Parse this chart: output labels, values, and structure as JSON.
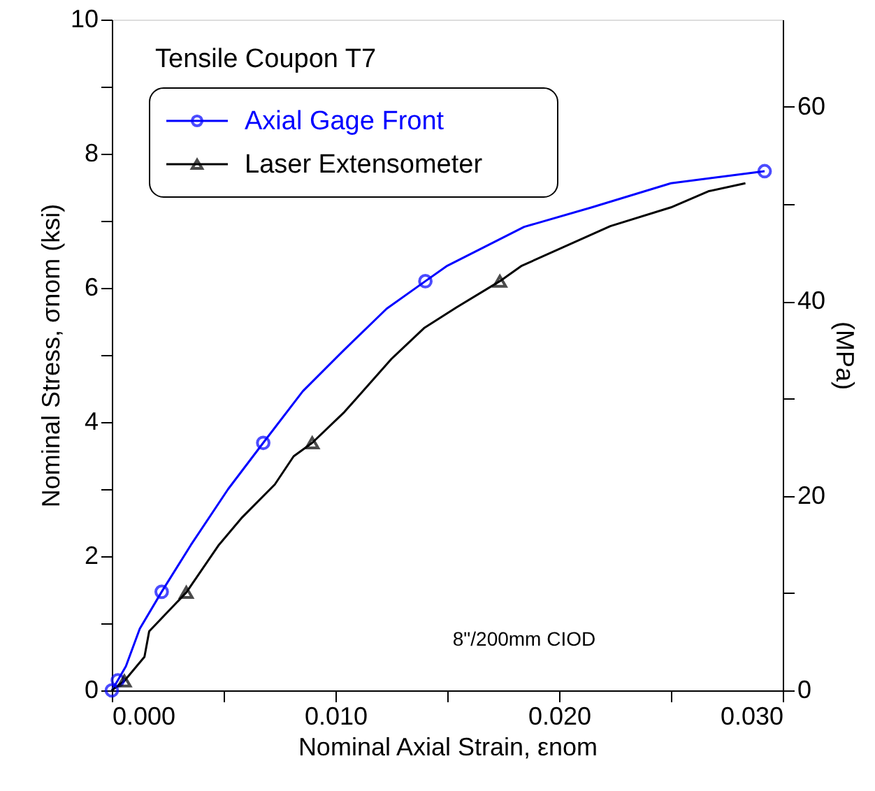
{
  "chart_data": {
    "type": "line",
    "title": "Tensile Coupon T7",
    "xlabel": "Nominal Axial Strain, εnom",
    "ylabel": "Nominal Stress, σnom (ksi)",
    "y2label": "(MPa)",
    "annotations": [
      "8\"/200mm CIOD"
    ],
    "xlim": [
      0,
      0.03
    ],
    "xticks": [
      {
        "value": 0,
        "label": "0.000"
      },
      {
        "value": 0.005,
        "label": null
      },
      {
        "value": 0.01,
        "label": "0.010"
      },
      {
        "value": 0.015,
        "label": null
      },
      {
        "value": 0.02,
        "label": "0.020"
      },
      {
        "value": 0.025,
        "label": null
      },
      {
        "value": 0.03,
        "label": "0.030"
      }
    ],
    "ylim": [
      0,
      10
    ],
    "yticks": [
      0,
      {
        "value": 1,
        "label": null
      },
      2,
      {
        "value": 3,
        "label": null
      },
      4,
      {
        "value": 5,
        "label": null
      },
      6,
      {
        "value": 7,
        "label": null
      },
      8,
      {
        "value": 9,
        "label": null
      },
      10
    ],
    "y2lim": [
      0,
      68.95
    ],
    "y2ticks": [
      0,
      {
        "value": 10,
        "label": null
      },
      20,
      {
        "value": 30,
        "label": null
      },
      40,
      {
        "value": 50,
        "label": null
      },
      60
    ],
    "legend": "top left",
    "grid": false,
    "series": [
      {
        "name": "Axial Gage Front",
        "color": "#0000ff",
        "marker": "none",
        "x": [
          0,
          0.00027,
          0.00063,
          0.00125,
          0.00223,
          0.00354,
          0.0052,
          0.00677,
          0.00854,
          0.0104,
          0.01229,
          0.01402,
          0.015,
          0.01844,
          0.02146,
          0.025,
          0.02919
        ],
        "values": [
          0,
          0.15,
          0.36,
          0.92,
          1.47,
          2.17,
          3.0,
          3.69,
          4.46,
          5.08,
          5.69,
          6.1,
          6.33,
          6.91,
          7.2,
          7.56,
          7.74
        ]
      },
      {
        "name": "Laser Extensometer",
        "color": "#000000",
        "marker": "none",
        "x": [
          0,
          0.00056,
          0.00146,
          0.00167,
          0.00333,
          0.00479,
          0.00583,
          0.00729,
          0.00813,
          0.00896,
          0.0104,
          0.0125,
          0.01396,
          0.01542,
          0.01735,
          0.01833,
          0.02229,
          0.025,
          0.02667,
          0.02833
        ],
        "values": [
          0,
          0.14,
          0.5,
          0.88,
          1.46,
          2.17,
          2.58,
          3.07,
          3.49,
          3.69,
          4.15,
          4.94,
          5.4,
          5.71,
          6.1,
          6.33,
          6.92,
          7.2,
          7.44,
          7.56
        ]
      },
      {
        "color": "#0000ff",
        "type": "scatter",
        "marker": "circle",
        "x": [
          0,
          0.00027,
          0.00223,
          0.00677,
          0.01402,
          0.02919
        ],
        "values": [
          0,
          0.15,
          1.47,
          3.69,
          6.1,
          7.74
        ]
      },
      {
        "color": "#000000",
        "type": "scatter",
        "marker": "triangle",
        "x": [
          0.00056,
          0.00333,
          0.00896,
          0.01735
        ],
        "values": [
          0.14,
          1.46,
          3.69,
          6.1
        ]
      }
    ]
  }
}
